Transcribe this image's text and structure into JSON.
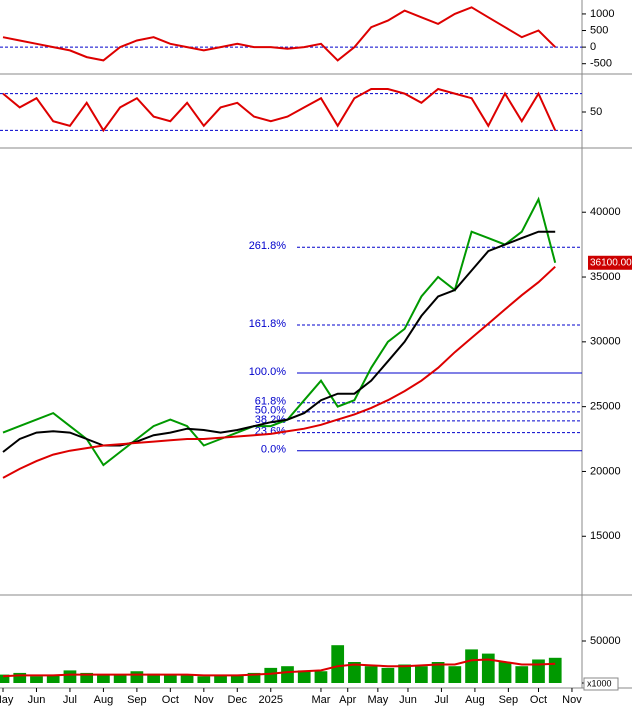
{
  "chart_data": [
    {
      "type": "line",
      "name": "macd",
      "xlim": [
        -0.09,
        17.3
      ],
      "ylim": [
        -750,
        1420
      ],
      "yticks": [
        -500,
        0,
        500,
        1000
      ],
      "zero_line": 0,
      "x": [
        0,
        0.5,
        1,
        1.5,
        2,
        2.5,
        3,
        3.5,
        4,
        4.5,
        5,
        5.5,
        6,
        6.5,
        7,
        7.5,
        8,
        8.5,
        9,
        9.5,
        10,
        10.5,
        11,
        11.5,
        12,
        12.5,
        13,
        13.5,
        14,
        14.5,
        15,
        15.5,
        16,
        16.5
      ],
      "series": [
        {
          "color": "#dd0000",
          "values": [
            300,
            200,
            100,
            0,
            -100,
            -300,
            -400,
            0,
            200,
            300,
            100,
            0,
            -100,
            0,
            100,
            0,
            0,
            -50,
            0,
            100,
            -400,
            0,
            600,
            800,
            1100,
            900,
            700,
            1000,
            1200,
            900,
            600,
            300,
            500,
            0
          ]
        }
      ]
    },
    {
      "type": "line",
      "name": "rsi",
      "xlim": [
        -0.09,
        17.3
      ],
      "ylim": [
        13,
        87
      ],
      "yticks": [
        50
      ],
      "levels": [
        30,
        70
      ],
      "x": [
        0,
        0.5,
        1,
        1.5,
        2,
        2.5,
        3,
        3.5,
        4,
        4.5,
        5,
        5.5,
        6,
        6.5,
        7,
        7.5,
        8,
        8.5,
        9,
        9.5,
        10,
        10.5,
        11,
        11.5,
        12,
        12.5,
        13,
        13.5,
        14,
        14.5,
        15,
        15.5,
        16,
        16.5
      ],
      "series": [
        {
          "color": "#dd0000",
          "values": [
            70,
            55,
            65,
            40,
            35,
            60,
            30,
            55,
            65,
            45,
            40,
            60,
            35,
            55,
            60,
            45,
            40,
            45,
            55,
            65,
            35,
            65,
            75,
            75,
            70,
            60,
            75,
            70,
            65,
            35,
            70,
            40,
            70,
            30
          ]
        }
      ]
    },
    {
      "type": "line",
      "name": "price",
      "xlim": [
        -0.09,
        17.3
      ],
      "ylim": [
        10700,
        44800
      ],
      "yticks": [
        15000,
        20000,
        25000,
        30000,
        35000,
        40000
      ],
      "x": [
        0,
        0.5,
        1,
        1.5,
        2,
        2.5,
        3,
        3.5,
        4,
        4.5,
        5,
        5.5,
        6,
        6.5,
        7,
        7.5,
        8,
        8.5,
        9,
        9.5,
        10,
        10.5,
        11,
        11.5,
        12,
        12.5,
        13,
        13.5,
        14,
        14.5,
        15,
        15.5,
        16,
        16.5
      ],
      "series": [
        {
          "color": "#009900",
          "values": [
            23000,
            23500,
            24000,
            24500,
            23500,
            22500,
            20500,
            21500,
            22500,
            23500,
            24000,
            23500,
            22000,
            22500,
            23000,
            23500,
            23500,
            24000,
            25500,
            27000,
            25000,
            25500,
            28000,
            30000,
            31000,
            33500,
            35000,
            34000,
            38500,
            38000,
            37500,
            38500,
            41000,
            36100
          ]
        },
        {
          "color": "#000000",
          "values": [
            21500,
            22500,
            23000,
            23100,
            23000,
            22500,
            22000,
            22000,
            22300,
            22800,
            23000,
            23300,
            23200,
            23000,
            23200,
            23500,
            23800,
            24000,
            24500,
            25500,
            26000,
            26000,
            27000,
            28500,
            30000,
            32000,
            33500,
            34000,
            35500,
            37000,
            37500,
            38000,
            38500,
            38500
          ]
        },
        {
          "color": "#dd0000",
          "values": [
            19500,
            20200,
            20800,
            21300,
            21600,
            21800,
            22000,
            22100,
            22200,
            22300,
            22400,
            22500,
            22500,
            22600,
            22700,
            22800,
            22900,
            23100,
            23300,
            23600,
            24000,
            24400,
            24900,
            25500,
            26200,
            27000,
            28000,
            29200,
            30300,
            31400,
            32500,
            33600,
            34600,
            35800
          ]
        }
      ],
      "fib_levels": [
        {
          "label": "261.8%",
          "value": 37300,
          "dash": true
        },
        {
          "label": "161.8%",
          "value": 31300,
          "dash": true
        },
        {
          "label": "100.0%",
          "value": 27600,
          "dash": false
        },
        {
          "label": "61.8%",
          "value": 25300,
          "dash": true
        },
        {
          "label": "50.0%",
          "value": 24600,
          "dash": true
        },
        {
          "label": "38.2%",
          "value": 23900,
          "dash": true
        },
        {
          "label": "23.6%",
          "value": 23000,
          "dash": true
        },
        {
          "label": "0.0%",
          "value": 21600,
          "dash": false
        }
      ],
      "last_price": {
        "value": 36100,
        "label": "36100.00"
      }
    },
    {
      "type": "bar",
      "name": "volume",
      "xlim": [
        -0.09,
        17.3
      ],
      "ylim": [
        0,
        100000
      ],
      "yticks": [
        0,
        50000
      ],
      "y_unit": "x1000",
      "xticks": [
        {
          "value": 0,
          "label": "May"
        },
        {
          "value": 1,
          "label": "Jun"
        },
        {
          "value": 2,
          "label": "Jul"
        },
        {
          "value": 3,
          "label": "Aug"
        },
        {
          "value": 4,
          "label": "Sep"
        },
        {
          "value": 5,
          "label": "Oct"
        },
        {
          "value": 6,
          "label": "Nov"
        },
        {
          "value": 7,
          "label": "Dec"
        },
        {
          "value": 8,
          "label": "2025"
        },
        {
          "value": 9.5,
          "label": "Mar"
        },
        {
          "value": 10.3,
          "label": "Apr"
        },
        {
          "value": 11.2,
          "label": "May"
        },
        {
          "value": 12.1,
          "label": "Jun"
        },
        {
          "value": 13.1,
          "label": "Jul"
        },
        {
          "value": 14.1,
          "label": "Aug"
        },
        {
          "value": 15.1,
          "label": "Sep"
        },
        {
          "value": 16,
          "label": "Oct"
        },
        {
          "value": 17,
          "label": "Nov"
        }
      ],
      "x": [
        0,
        0.5,
        1,
        1.5,
        2,
        2.5,
        3,
        3.5,
        4,
        4.5,
        5,
        5.5,
        6,
        6.5,
        7,
        7.5,
        8,
        8.5,
        9,
        9.5,
        10,
        10.5,
        11,
        11.5,
        12,
        12.5,
        13,
        13.5,
        14,
        14.5,
        15,
        15.5,
        16,
        16.5
      ],
      "series": [
        {
          "color": "#009900",
          "values": [
            10000,
            12000,
            8000,
            9000,
            15000,
            12000,
            10000,
            9000,
            14000,
            11000,
            10000,
            9000,
            8000,
            9000,
            10000,
            12000,
            18000,
            20000,
            15000,
            14000,
            45000,
            25000,
            20000,
            18000,
            22000,
            20000,
            25000,
            20000,
            40000,
            35000,
            25000,
            20000,
            28000,
            30000
          ]
        },
        {
          "color": "#dd0000",
          "line": true,
          "values": [
            8000,
            9000,
            9000,
            9000,
            10000,
            10000,
            10000,
            10000,
            10000,
            10000,
            10000,
            10000,
            9000,
            9000,
            9000,
            10000,
            11000,
            13000,
            14000,
            15000,
            20000,
            22000,
            21000,
            20000,
            20000,
            21000,
            22000,
            22000,
            27000,
            28000,
            25000,
            22000,
            22000,
            23000
          ]
        }
      ]
    }
  ]
}
